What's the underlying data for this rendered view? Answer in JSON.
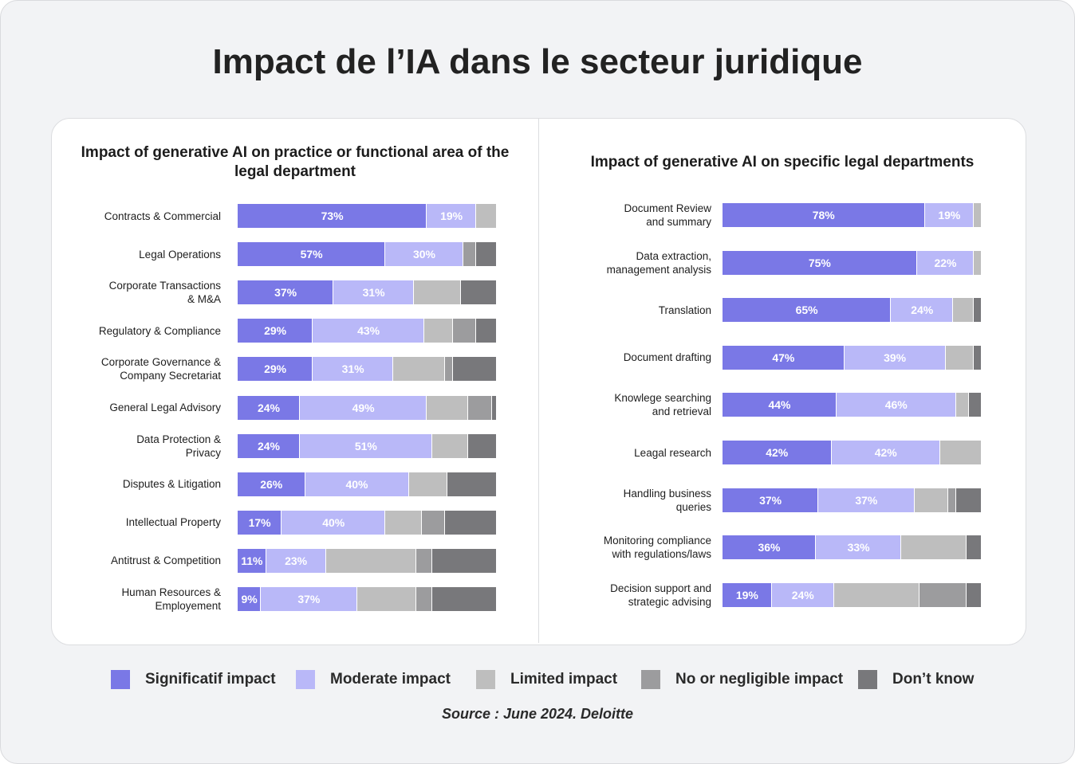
{
  "title": "Impact de l’IA dans le secteur juridique",
  "source": "Source : June 2024. Deloitte",
  "chart_data": [
    {
      "type": "bar",
      "orientation": "horizontal",
      "stacked": true,
      "title": "Impact of generative AI on practice or functional area of the legal department",
      "categories": [
        "Contracts & Commercial",
        "Legal Operations",
        "Corporate Transactions\n& M&A",
        "Regulatory & Compliance",
        "Corporate Governance &\nCompany Secretariat",
        "General Legal Advisory",
        "Data Protection &\nPrivacy",
        "Disputes & Litigation",
        "Intellectual Property",
        "Antitrust & Competition",
        "Human Resources &\nEmployement"
      ],
      "xlim": [
        0,
        100
      ],
      "series": [
        {
          "name": "Significatif impact",
          "color": "#7a78e6",
          "values": [
            73,
            57,
            37,
            29,
            29,
            24,
            24,
            26,
            17,
            11,
            9
          ],
          "value_labels": [
            "73%",
            "57%",
            "37%",
            "29%",
            "29%",
            "24%",
            "24%",
            "26%",
            "17%",
            "11%",
            "9%"
          ]
        },
        {
          "name": "Moderate impact",
          "color": "#b9b8f8",
          "values": [
            19,
            30,
            31,
            43,
            31,
            49,
            51,
            40,
            40,
            23,
            37
          ],
          "value_labels": [
            "19%",
            "30%",
            "31%",
            "43%",
            "31%",
            "49%",
            "51%",
            "40%",
            "40%",
            "23%",
            "37%"
          ]
        },
        {
          "name": "Limited impact",
          "color": "#bebebe",
          "values": [
            8,
            0,
            18,
            11,
            20,
            16,
            14,
            15,
            14,
            35,
            23
          ]
        },
        {
          "name": "No or negligible impact",
          "color": "#9c9c9e",
          "values": [
            0,
            5,
            0,
            9,
            3,
            9,
            0,
            0,
            9,
            6,
            6
          ]
        },
        {
          "name": "Don’t know",
          "color": "#78787b",
          "values": [
            0,
            8,
            14,
            8,
            17,
            2,
            11,
            19,
            20,
            25,
            25
          ]
        }
      ]
    },
    {
      "type": "bar",
      "orientation": "horizontal",
      "stacked": true,
      "title": "Impact of generative AI on specific legal departments",
      "categories": [
        "Document Review\nand summary",
        "Data extraction,\nmanagement analysis",
        "Translation",
        "Document drafting",
        "Knowlege searching\nand retrieval",
        "Leagal research",
        "Handling business\nqueries",
        "Monitoring compliance\nwith regulations/laws",
        "Decision support and\nstrategic advising"
      ],
      "xlim": [
        0,
        100
      ],
      "series": [
        {
          "color": "#7a78e6",
          "values": [
            78,
            75,
            65,
            47,
            44,
            42,
            37,
            36,
            19
          ],
          "value_labels": [
            "78%",
            "75%",
            "65%",
            "47%",
            "44%",
            "42%",
            "37%",
            "36%",
            "19%"
          ]
        },
        {
          "color": "#b9b8f8",
          "values": [
            19,
            22,
            24,
            39,
            46,
            42,
            37,
            33,
            24
          ],
          "value_labels": [
            "19%",
            "22%",
            "24%",
            "39%",
            "46%",
            "42%",
            "37%",
            "33%",
            "24%"
          ]
        },
        {
          "color": "#bebebe",
          "values": [
            3,
            3,
            8,
            11,
            5,
            16,
            13,
            25,
            33
          ]
        },
        {
          "color": "#9c9c9e",
          "values": [
            0,
            0,
            0,
            0,
            0,
            0,
            3,
            0,
            18
          ]
        },
        {
          "color": "#78787b",
          "values": [
            0,
            0,
            3,
            3,
            5,
            0,
            10,
            6,
            6
          ]
        }
      ]
    }
  ]
}
